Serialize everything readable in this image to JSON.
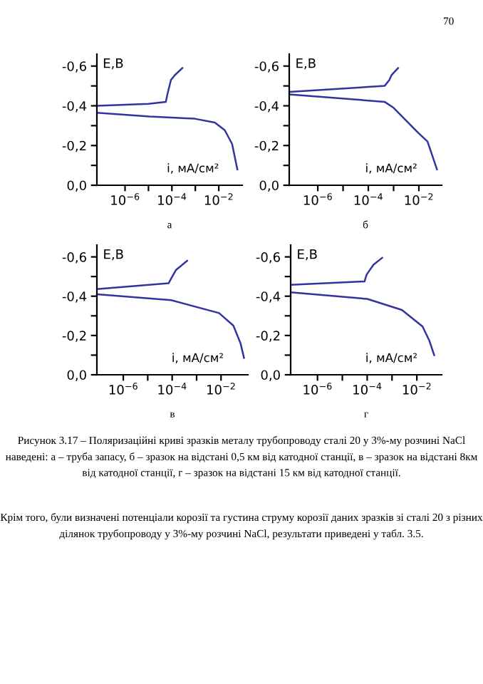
{
  "chart_data": [
    {
      "type": "line",
      "title": "а",
      "xlabel": "i, мА/см²",
      "ylabel": "E,B",
      "log": "x",
      "xlim": [
        6.3e-08,
        0.1
      ],
      "ylim": [
        0,
        -0.66
      ],
      "xticks": [
        {
          "value": 1e-06,
          "label": "10$^{−6}$"
        },
        {
          "value": 1e-05,
          "label": null
        },
        {
          "value": 0.0001,
          "label": "10$^{−4}$"
        },
        {
          "value": 0.001,
          "label": null
        },
        {
          "value": 0.01,
          "label": "10$^{−2}$"
        }
      ],
      "yticks": [
        {
          "value": 0,
          "label": "0,0"
        },
        {
          "value": -0.1,
          "label": null
        },
        {
          "value": -0.2,
          "label": "-0,2"
        },
        {
          "value": -0.3,
          "label": null
        },
        {
          "value": -0.4,
          "label": "-0,4"
        },
        {
          "value": -0.5,
          "label": null
        },
        {
          "value": -0.6,
          "label": "-0,6"
        }
      ],
      "annotations": [
        "70"
      ],
      "series": [
        {
          "color": "#3333a0",
          "x": [
            6.3e-08,
            1e-06,
            1e-05,
            5.5e-05,
            6.5e-05,
            9.1e-05,
            0.000135,
            0.00028
          ],
          "values": [
            -0.4,
            -0.405,
            -0.41,
            -0.42,
            -0.46,
            -0.53,
            -0.555,
            -0.59
          ]
        },
        {
          "color": "#3333a0",
          "x": [
            6.3e-08,
            1.1e-05,
            0.00095,
            0.0068,
            0.018,
            0.037,
            0.062
          ],
          "values": [
            -0.365,
            -0.346,
            -0.335,
            -0.316,
            -0.277,
            -0.208,
            -0.08
          ]
        }
      ]
    },
    {
      "type": "line",
      "title": "б",
      "xlabel": "i, мА/см²",
      "ylabel": "E,B",
      "log": "x",
      "xlim": [
        7.4e-08,
        0.08
      ],
      "ylim": [
        0,
        -0.66
      ],
      "xticks": [
        {
          "value": 1e-06,
          "label": "10$^{−6}$"
        },
        {
          "value": 1e-05,
          "label": null
        },
        {
          "value": 0.0001,
          "label": "10$^{−4}$"
        },
        {
          "value": 0.001,
          "label": null
        },
        {
          "value": 0.01,
          "label": "10$^{−2}$"
        }
      ],
      "yticks": [
        {
          "value": 0,
          "label": "0,0"
        },
        {
          "value": -0.1,
          "label": null
        },
        {
          "value": -0.2,
          "label": "-0,2"
        },
        {
          "value": -0.3,
          "label": null
        },
        {
          "value": -0.4,
          "label": "-0,4"
        },
        {
          "value": -0.5,
          "label": null
        },
        {
          "value": -0.6,
          "label": "-0,6"
        }
      ],
      "series": [
        {
          "color": "#3333a0",
          "x": [
            7.4e-08,
            0.00044,
            0.00068,
            0.00083,
            0.0015
          ],
          "values": [
            -0.47,
            -0.5,
            -0.53,
            -0.555,
            -0.59
          ]
        },
        {
          "color": "#3333a0",
          "x": [
            7.4e-08,
            0.00044,
            0.001,
            0.0091,
            0.022,
            0.052
          ],
          "values": [
            -0.457,
            -0.42,
            -0.39,
            -0.266,
            -0.22,
            -0.08
          ]
        }
      ]
    },
    {
      "type": "line",
      "title": "в",
      "xlabel": "i, мА/см²",
      "ylabel": "E,B",
      "log": "x",
      "xlim": [
        8.3e-08,
        0.126
      ],
      "ylim": [
        0,
        -0.66
      ],
      "xticks": [
        {
          "value": 1e-06,
          "label": "10$^{−6}$"
        },
        {
          "value": 1e-05,
          "label": null
        },
        {
          "value": 0.0001,
          "label": "10$^{−4}$"
        },
        {
          "value": 0.001,
          "label": null
        },
        {
          "value": 0.01,
          "label": "10$^{−2}$"
        }
      ],
      "yticks": [
        {
          "value": 0,
          "label": "0,0"
        },
        {
          "value": -0.1,
          "label": null
        },
        {
          "value": -0.2,
          "label": "-0,2"
        },
        {
          "value": -0.3,
          "label": null
        },
        {
          "value": -0.4,
          "label": "-0,4"
        },
        {
          "value": -0.5,
          "label": null
        },
        {
          "value": -0.6,
          "label": "-0,6"
        }
      ],
      "series": [
        {
          "color": "#3333a0",
          "x": [
            8.3e-08,
            7.2e-05,
            9.1e-05,
            0.000145,
            0.00041
          ],
          "values": [
            -0.436,
            -0.466,
            -0.49,
            -0.534,
            -0.58
          ]
        },
        {
          "color": "#3333a0",
          "x": [
            8.3e-08,
            9.1e-05,
            0.0083,
            0.032,
            0.063,
            0.087
          ],
          "values": [
            -0.41,
            -0.38,
            -0.314,
            -0.25,
            -0.16,
            -0.086
          ]
        }
      ]
    },
    {
      "type": "line",
      "title": "г",
      "xlabel": "i, мА/см²",
      "ylabel": "E,B",
      "log": "x",
      "xlim": [
        8.3e-08,
        0.1
      ],
      "ylim": [
        0,
        -0.66
      ],
      "xticks": [
        {
          "value": 1e-06,
          "label": "10$^{−6}$"
        },
        {
          "value": 1e-05,
          "label": null
        },
        {
          "value": 0.0001,
          "label": "10$^{−4}$"
        },
        {
          "value": 0.001,
          "label": null
        },
        {
          "value": 0.01,
          "label": "10$^{−2}$"
        }
      ],
      "yticks": [
        {
          "value": 0,
          "label": "0,0"
        },
        {
          "value": -0.1,
          "label": null
        },
        {
          "value": -0.2,
          "label": "-0,2"
        },
        {
          "value": -0.3,
          "label": null
        },
        {
          "value": -0.4,
          "label": "-0,4"
        },
        {
          "value": -0.5,
          "label": null
        },
        {
          "value": -0.6,
          "label": "-0,6"
        }
      ],
      "annotations": [
        "Рисунок 3.17 – Поляризаційні криві зразків металу трубопроводу сталі 20 у 3%-му розчині NaCl наведені: а – труба запасу, б – зразок на відстані 0,5 км від катодної станції, в – зразок на відстані 8км від катодної станції, г – зразок на відстані 15 км від катодної станції.",
        "Крім того, були визначені потенціали корозії та густина струму корозії даних зразків зі сталі 20 з різних ділянок трубопроводу у 3%-му розчині NaCl, результати приведені у табл. 3.5."
      ],
      "series": [
        {
          "color": "#3333a0",
          "x": [
            8.3e-08,
            7.8e-05,
            9.5e-05,
            0.00018,
            0.0004
          ],
          "values": [
            -0.458,
            -0.475,
            -0.51,
            -0.56,
            -0.595
          ]
        },
        {
          "color": "#3333a0",
          "x": [
            8.3e-08,
            0.0001,
            0.0025,
            0.017,
            0.032,
            0.05
          ],
          "values": [
            -0.42,
            -0.386,
            -0.33,
            -0.246,
            -0.173,
            -0.1
          ]
        }
      ]
    }
  ]
}
